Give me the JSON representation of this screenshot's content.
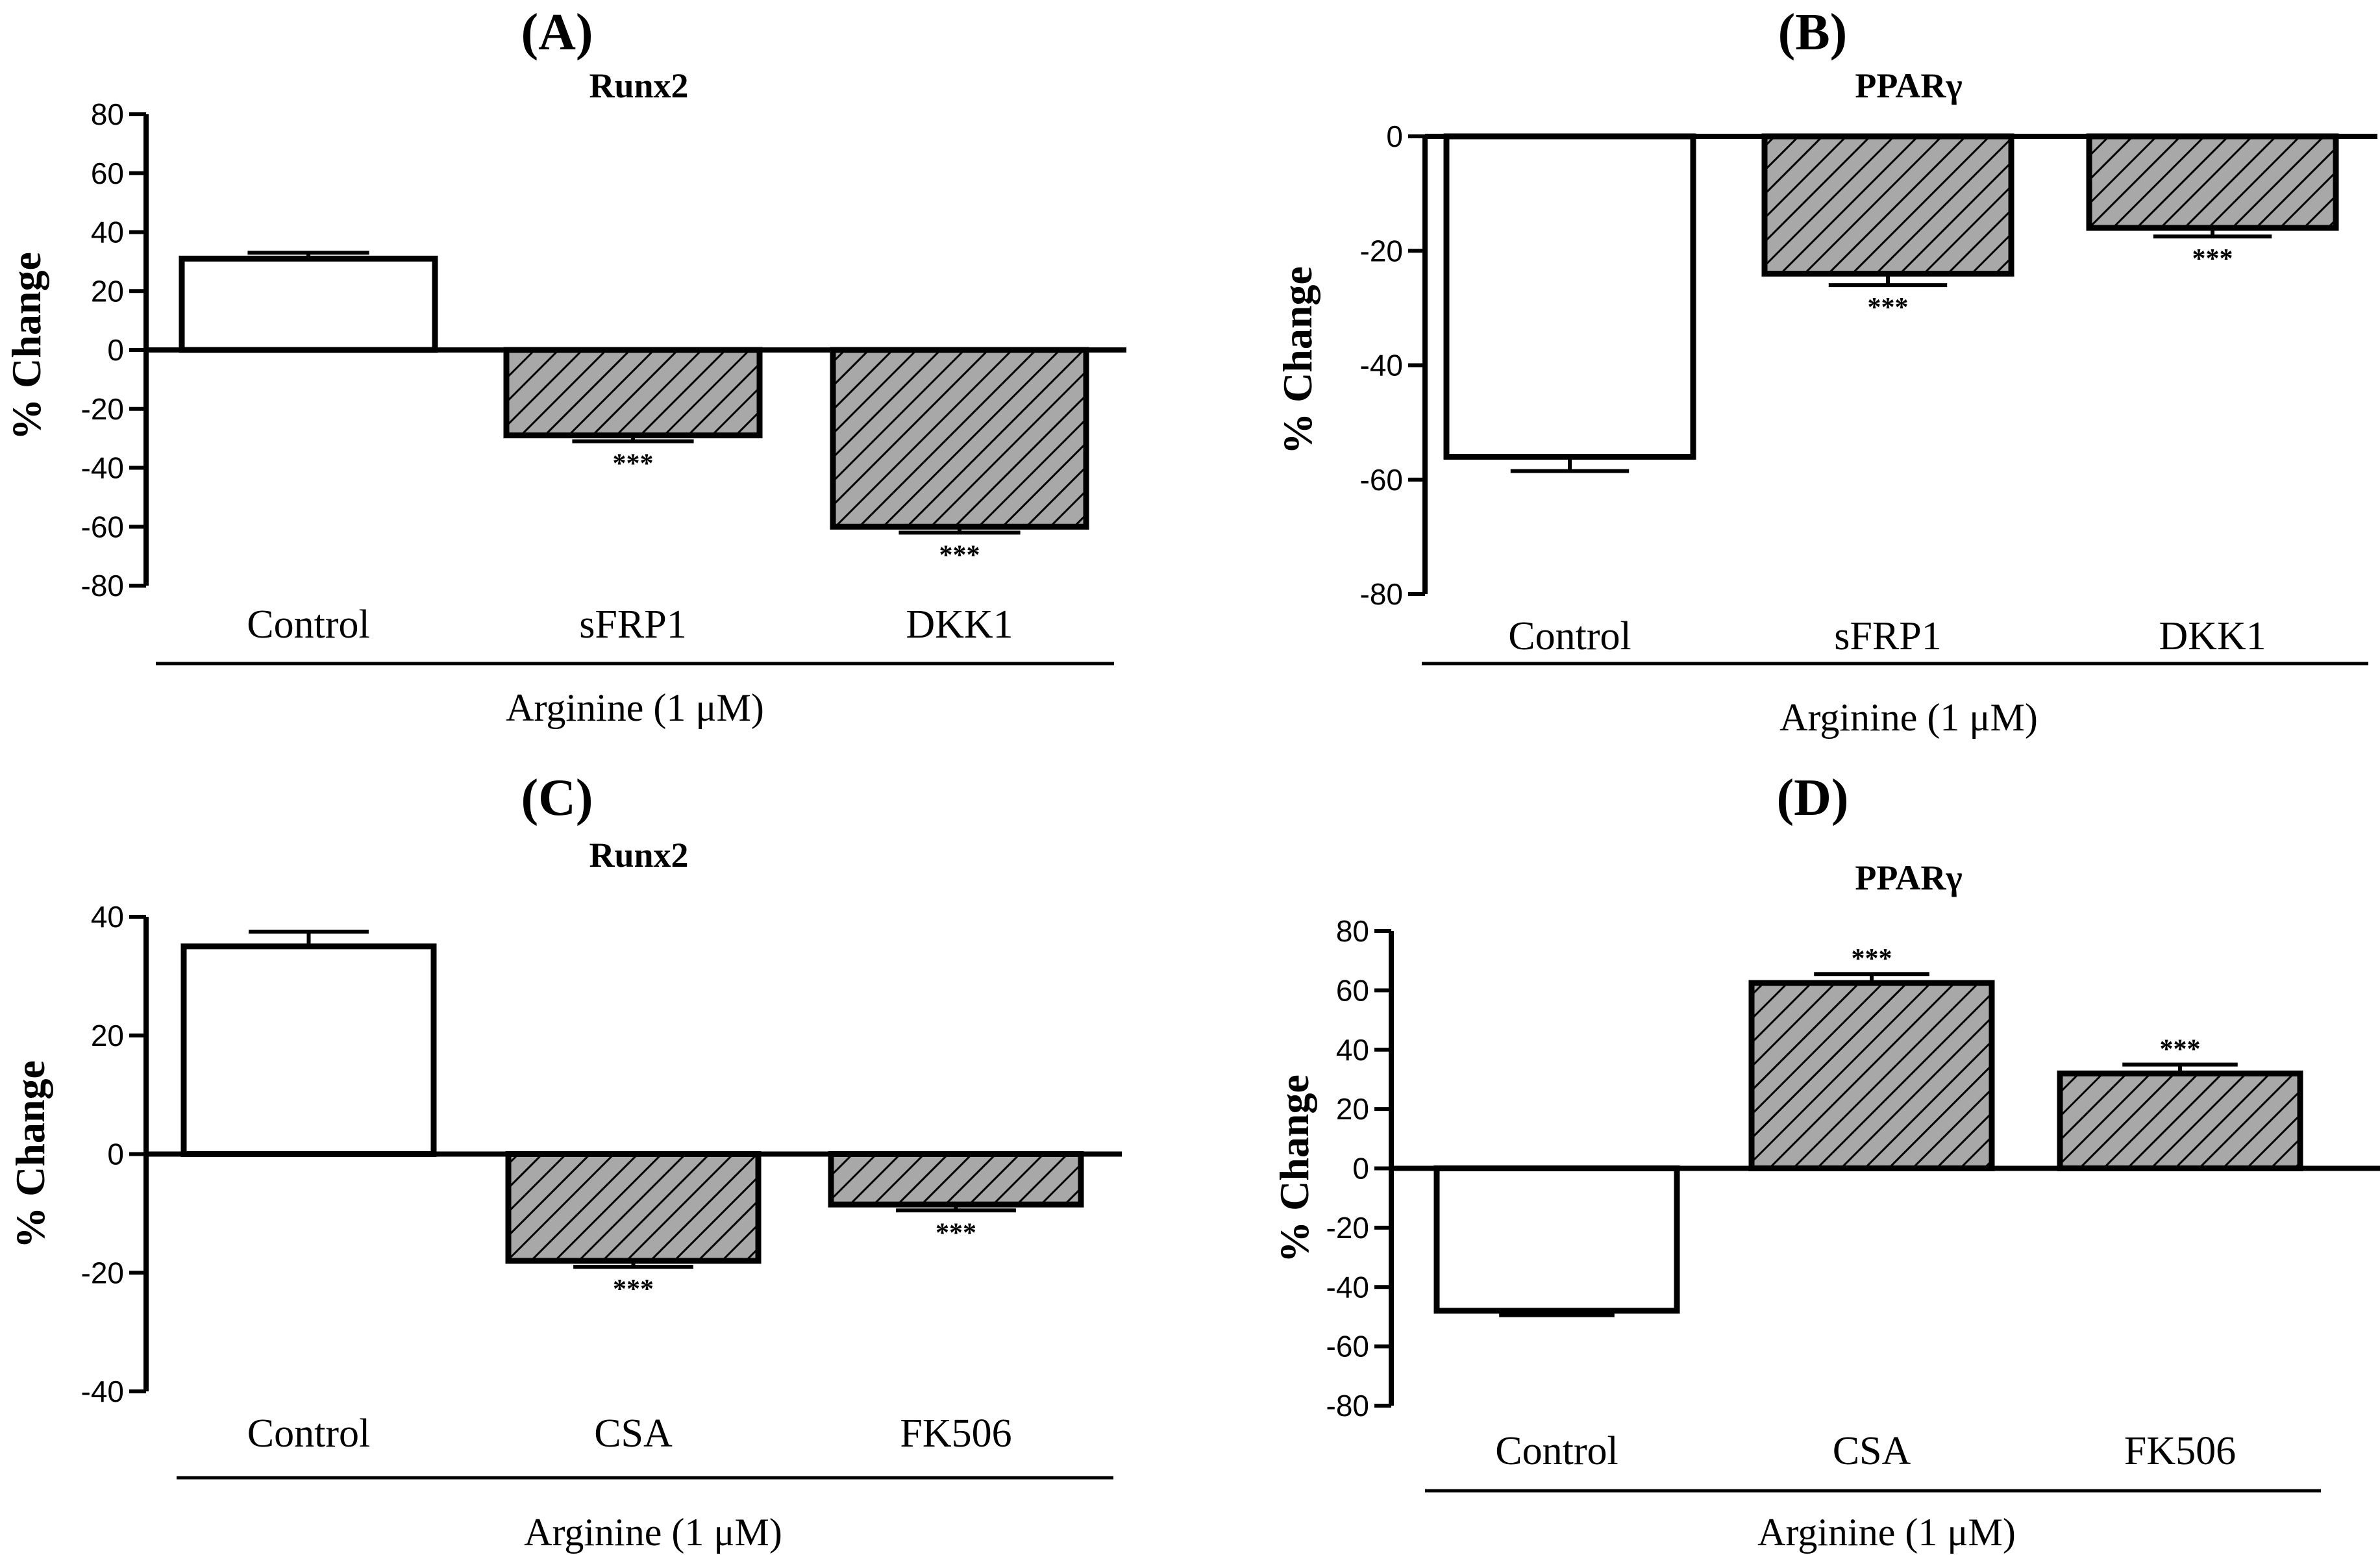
{
  "chart_data": [
    {
      "type": "bar",
      "panel": "(A)",
      "title": "Runx2",
      "ylabel": "% Change",
      "group_label": "Arginine (1 μM)",
      "categories": [
        "Control",
        "sFRP1",
        "DKK1"
      ],
      "values": [
        31,
        -29,
        -60
      ],
      "errors": [
        2,
        2,
        2
      ],
      "significance": [
        "",
        "***",
        "***"
      ],
      "fills": [
        "open",
        "hatched",
        "hatched"
      ],
      "ylim": [
        -80,
        80
      ],
      "yticks": [
        80,
        60,
        40,
        20,
        0,
        -20,
        -40,
        -60,
        -80
      ],
      "ytick_labels": [
        "80",
        "60",
        "40",
        "20",
        "0",
        "-20",
        "-40",
        "-60",
        "-80"
      ]
    },
    {
      "type": "bar",
      "panel": "(B)",
      "title": "PPARγ",
      "ylabel": "% Change",
      "group_label": "Arginine (1 μM)",
      "categories": [
        "Control",
        "sFRP1",
        "DKK1"
      ],
      "values": [
        -56,
        -24,
        -16
      ],
      "errors": [
        2.5,
        2,
        1.5
      ],
      "significance": [
        "",
        "***",
        "***"
      ],
      "fills": [
        "open",
        "hatched",
        "hatched"
      ],
      "ylim": [
        -80,
        0
      ],
      "yticks": [
        0,
        -20,
        -40,
        -60,
        -80
      ],
      "ytick_labels": [
        "0",
        "-20",
        "-40",
        "-60",
        "-80"
      ]
    },
    {
      "type": "bar",
      "panel": "(C)",
      "title": "Runx2",
      "ylabel": "% Change",
      "group_label": "Arginine (1 μM)",
      "categories": [
        "Control",
        "CSA",
        "FK506"
      ],
      "values": [
        35,
        -18,
        -8.5
      ],
      "errors": [
        2.5,
        1,
        1
      ],
      "significance": [
        "",
        "***",
        "***"
      ],
      "fills": [
        "open",
        "hatched",
        "hatched"
      ],
      "ylim": [
        -40,
        40
      ],
      "yticks": [
        40,
        20,
        0,
        -20,
        -40
      ],
      "ytick_labels": [
        "40",
        "20",
        "0",
        "-20",
        "-40"
      ]
    },
    {
      "type": "bar",
      "panel": "(D)",
      "title": "PPARγ",
      "ylabel": "% Change",
      "group_label": "Arginine (1 μM)",
      "categories": [
        "Control",
        "CSA",
        "FK506"
      ],
      "values": [
        -48,
        62.5,
        32
      ],
      "errors": [
        1.5,
        3,
        3
      ],
      "significance": [
        "",
        "***",
        "***"
      ],
      "fills": [
        "open",
        "hatched",
        "hatched"
      ],
      "ylim": [
        -80,
        80
      ],
      "yticks": [
        80,
        60,
        40,
        20,
        0,
        -20,
        -40,
        -60,
        -80
      ],
      "ytick_labels": [
        "80",
        "60",
        "40",
        "20",
        "0",
        "-20",
        "-40",
        "-60",
        "-80"
      ]
    }
  ],
  "colors": {
    "hatch_fill": "#a8a8a8",
    "line": "#000000",
    "open_fill": "#ffffff"
  }
}
